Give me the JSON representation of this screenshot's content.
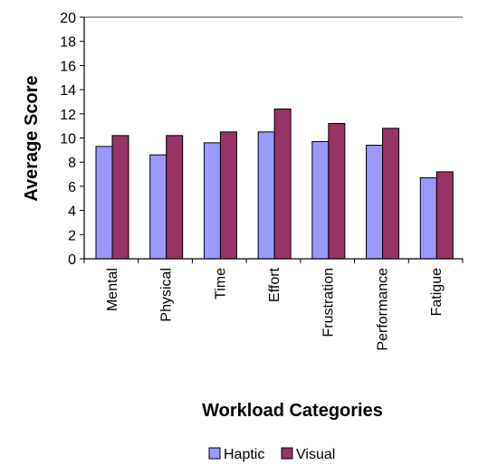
{
  "chart_data": {
    "type": "bar",
    "title": "",
    "xlabel": "Workload Categories",
    "ylabel": "Average Score",
    "ylim": [
      0,
      20
    ],
    "yticks": [
      0,
      2,
      4,
      6,
      8,
      10,
      12,
      14,
      16,
      18,
      20
    ],
    "grid": false,
    "legend_position": "bottom",
    "categories": [
      "Mental",
      "Physical",
      "Time",
      "Effort",
      "Frustration",
      "Performance",
      "Fatigue"
    ],
    "series": [
      {
        "name": "Haptic",
        "color": "#9999ff",
        "values": [
          9.3,
          8.6,
          9.6,
          10.5,
          9.7,
          9.4,
          6.7
        ]
      },
      {
        "name": "Visual",
        "color": "#993366",
        "values": [
          10.2,
          10.2,
          10.5,
          12.4,
          11.2,
          10.8,
          7.2
        ]
      }
    ]
  }
}
